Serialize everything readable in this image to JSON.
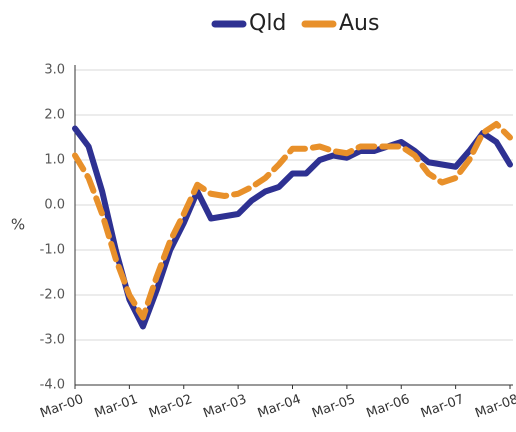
{
  "chart_data": {
    "type": "line",
    "y_label": "%",
    "categories": [
      "Mar-00",
      null,
      null,
      null,
      "Mar-01",
      null,
      null,
      null,
      "Mar-02",
      null,
      null,
      null,
      "Mar-03",
      null,
      null,
      null,
      "Mar-04",
      null,
      null,
      null,
      "Mar-05",
      null,
      null,
      null,
      "Mar-06",
      null,
      null,
      null,
      "Mar-07",
      null,
      null,
      null,
      "Mar-08"
    ],
    "series": [
      {
        "name": "Qld",
        "color": "#2e3192",
        "dashed": false,
        "values": [
          1.7,
          1.3,
          0.3,
          -1.0,
          -2.1,
          -2.7,
          -1.9,
          -1.0,
          -0.4,
          0.3,
          -0.3,
          -0.25,
          -0.2,
          0.1,
          0.3,
          0.4,
          0.7,
          0.7,
          1.0,
          1.1,
          1.05,
          1.2,
          1.2,
          1.3,
          1.4,
          1.2,
          0.95,
          0.9,
          0.85,
          1.2,
          1.6,
          1.4,
          0.9
        ]
      },
      {
        "name": "Aus",
        "color": "#e8902a",
        "dashed": true,
        "values": [
          1.1,
          0.6,
          -0.2,
          -1.2,
          -2.0,
          -2.5,
          -1.6,
          -0.8,
          -0.2,
          0.45,
          0.25,
          0.2,
          0.25,
          0.4,
          0.6,
          0.9,
          1.25,
          1.25,
          1.3,
          1.2,
          1.15,
          1.3,
          1.3,
          1.3,
          1.3,
          1.1,
          0.7,
          0.5,
          0.6,
          1.0,
          1.6,
          1.8,
          1.5
        ]
      }
    ],
    "ylim": [
      -4,
      3
    ],
    "yticks": [
      {
        "value": -4,
        "label": "-4.0"
      },
      {
        "value": -3,
        "label": "-3.0"
      },
      {
        "value": -2,
        "label": "-2.0"
      },
      {
        "value": -1,
        "label": "-1.0"
      },
      {
        "value": 0,
        "label": "0.0"
      },
      {
        "value": 1,
        "label": "1.0"
      },
      {
        "value": 2,
        "label": "2.0"
      },
      {
        "value": 3,
        "label": "3.0"
      }
    ],
    "grid": true,
    "legend": "top"
  }
}
